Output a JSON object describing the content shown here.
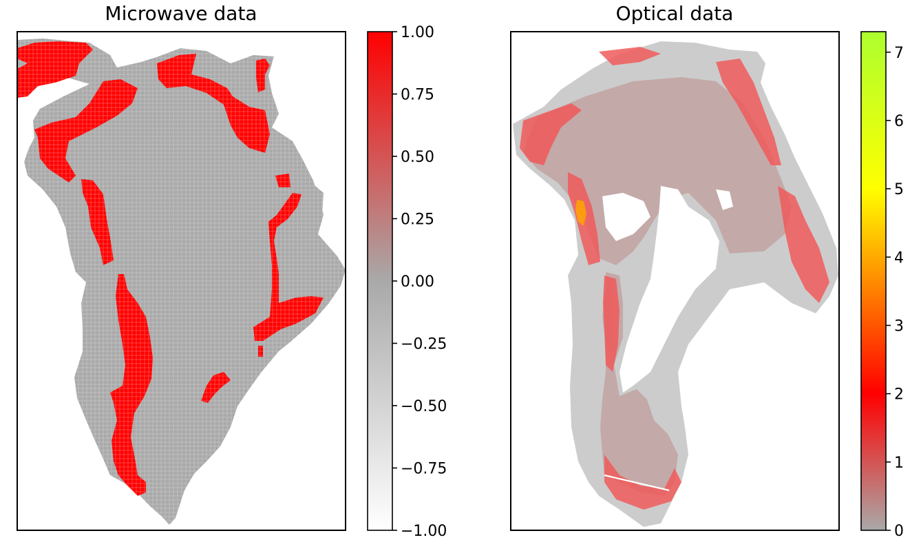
{
  "chart_data": [
    {
      "type": "heatmap",
      "title": "Microwave data",
      "subject": "Greenland",
      "xticks": false,
      "yticks": false,
      "colorbar": {
        "range": [
          -1.0,
          1.0
        ],
        "ticks": [
          1.0,
          0.75,
          0.5,
          0.25,
          0.0,
          -0.25,
          -0.5,
          -0.75,
          -1.0
        ],
        "tick_labels": [
          "1.00",
          "0.75",
          "0.50",
          "0.25",
          "0.00",
          "−0.25",
          "−0.50",
          "−0.75",
          "−1.00"
        ],
        "colors": [
          {
            "value": -1.0,
            "color": "#ffffff"
          },
          {
            "value": 0.0,
            "color": "#a9a9a9"
          },
          {
            "value": 1.0,
            "color": "#ff0000"
          }
        ]
      },
      "values_shown": [
        0,
        1
      ],
      "colors": {
        "ice_sheet": "#a9a9a9",
        "melt": "#ff0000"
      }
    },
    {
      "type": "heatmap",
      "title": "Optical data",
      "subject": "Greenland",
      "xticks": false,
      "yticks": false,
      "colorbar": {
        "range": [
          0,
          7.3
        ],
        "ticks": [
          0,
          1,
          2,
          3,
          4,
          5,
          6,
          7
        ],
        "tick_labels": [
          "0",
          "1",
          "2",
          "3",
          "4",
          "5",
          "6",
          "7"
        ],
        "colors": [
          {
            "value": 0,
            "color": "#a9a9a9"
          },
          {
            "value": 2,
            "color": "#ff0000"
          },
          {
            "value": 5,
            "color": "#ffff00"
          },
          {
            "value": 7.3,
            "color": "#adff2f"
          }
        ]
      },
      "colors": {
        "ice_sheet": "#c2aaaa",
        "land": "#cccccc",
        "melt": "#f05a5a",
        "peak": "#ffa500"
      }
    }
  ]
}
